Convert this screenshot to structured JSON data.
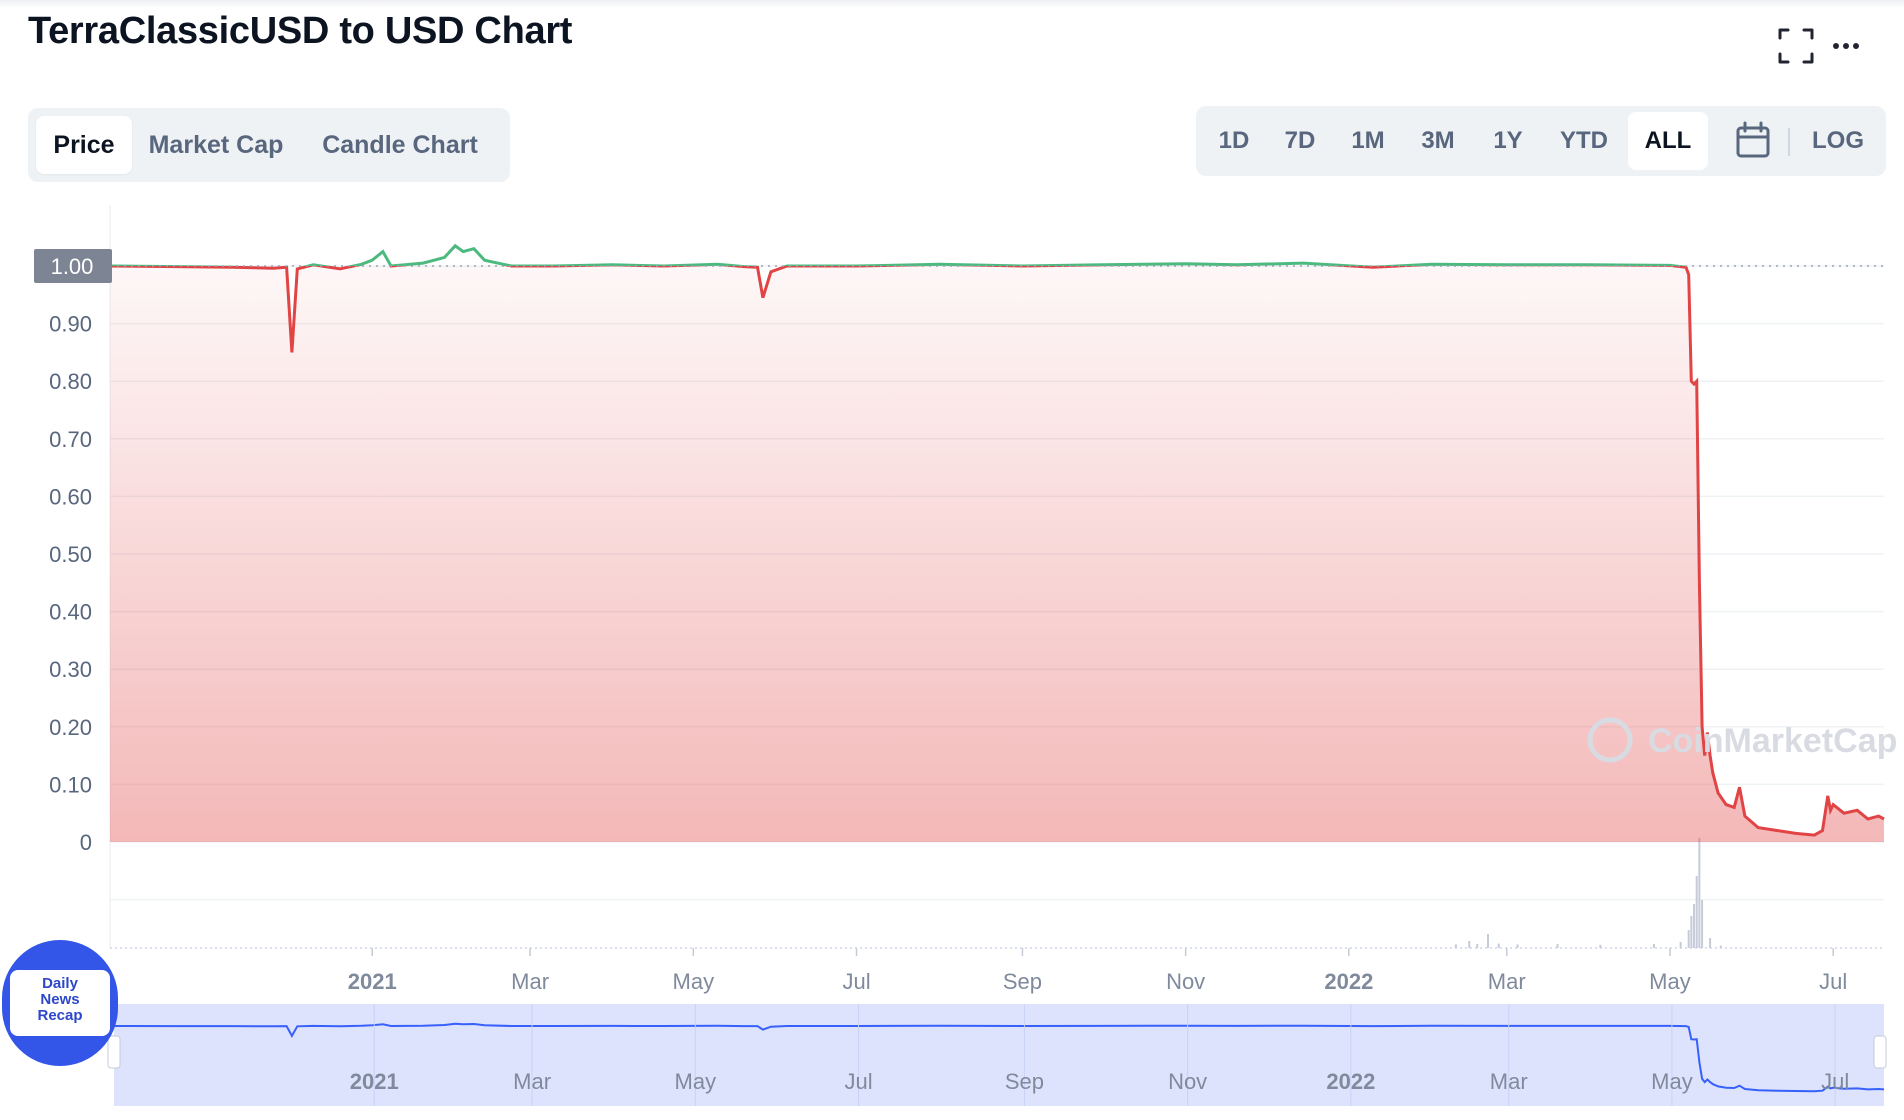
{
  "header": {
    "title": "TerraClassicUSD to USD Chart",
    "fullscreen_icon": "fullscreen-icon",
    "more_icon": "more-horizontal-icon"
  },
  "tabs": [
    {
      "label": "Price",
      "active": true
    },
    {
      "label": "Market Cap",
      "active": false
    },
    {
      "label": "Candle Chart",
      "active": false
    }
  ],
  "ranges": [
    {
      "label": "1D",
      "active": false
    },
    {
      "label": "7D",
      "active": false
    },
    {
      "label": "1M",
      "active": false
    },
    {
      "label": "3M",
      "active": false
    },
    {
      "label": "1Y",
      "active": false
    },
    {
      "label": "YTD",
      "active": false
    },
    {
      "label": "ALL",
      "active": true
    }
  ],
  "calendar_icon": "calendar-icon",
  "log_label": "LOG",
  "watermark": "CoinMarketCap",
  "news_badge": {
    "line1": "Daily",
    "line2": "News",
    "line3": "Recap"
  },
  "colors": {
    "up": "#4cba7e",
    "down": "#e14445",
    "navigator": "#3861fb",
    "accent": "#3456e8"
  },
  "chart_data": {
    "type": "line",
    "y_ticks": [
      "1.00",
      "0.90",
      "0.80",
      "0.70",
      "0.60",
      "0.50",
      "0.40",
      "0.30",
      "0.20",
      "0.10",
      "0"
    ],
    "ylim": [
      0,
      1.05
    ],
    "current_price_label": "1.00",
    "baseline": 1.0,
    "x_ticks": [
      {
        "label": "2021",
        "date": "2021-01-01",
        "year": true
      },
      {
        "label": "Mar",
        "date": "2021-03-01",
        "year": false
      },
      {
        "label": "May",
        "date": "2021-05-01",
        "year": false
      },
      {
        "label": "Jul",
        "date": "2021-07-01",
        "year": false
      },
      {
        "label": "Sep",
        "date": "2021-09-01",
        "year": false
      },
      {
        "label": "Nov",
        "date": "2021-11-01",
        "year": false
      },
      {
        "label": "2022",
        "date": "2022-01-01",
        "year": true
      },
      {
        "label": "Mar",
        "date": "2022-03-01",
        "year": false
      },
      {
        "label": "May",
        "date": "2022-05-01",
        "year": false
      },
      {
        "label": "Jul",
        "date": "2022-07-01",
        "year": false
      }
    ],
    "series": [
      {
        "points": [
          [
            "2020-09-25",
            1.0
          ],
          [
            "2020-10-20",
            0.999
          ],
          [
            "2020-11-10",
            0.998
          ],
          [
            "2020-11-25",
            0.996
          ],
          [
            "2020-11-30",
            0.998
          ],
          [
            "2020-12-02",
            0.85
          ],
          [
            "2020-12-04",
            0.995
          ],
          [
            "2020-12-10",
            1.002
          ],
          [
            "2020-12-20",
            0.995
          ],
          [
            "2020-12-28",
            1.003
          ],
          [
            "2021-01-01",
            1.01
          ],
          [
            "2021-01-05",
            1.025
          ],
          [
            "2021-01-08",
            1.0
          ],
          [
            "2021-01-20",
            1.005
          ],
          [
            "2021-01-28",
            1.015
          ],
          [
            "2021-02-01",
            1.035
          ],
          [
            "2021-02-04",
            1.025
          ],
          [
            "2021-02-08",
            1.03
          ],
          [
            "2021-02-12",
            1.01
          ],
          [
            "2021-02-22",
            1.0
          ],
          [
            "2021-03-10",
            1.0
          ],
          [
            "2021-04-01",
            1.002
          ],
          [
            "2021-04-20",
            1.0
          ],
          [
            "2021-05-10",
            1.003
          ],
          [
            "2021-05-20",
            0.999
          ],
          [
            "2021-05-25",
            0.998
          ],
          [
            "2021-05-27",
            0.945
          ],
          [
            "2021-05-30",
            0.99
          ],
          [
            "2021-06-05",
            1.0
          ],
          [
            "2021-07-01",
            1.0
          ],
          [
            "2021-08-01",
            1.003
          ],
          [
            "2021-09-01",
            1.0
          ],
          [
            "2021-10-01",
            1.002
          ],
          [
            "2021-11-01",
            1.004
          ],
          [
            "2021-11-20",
            1.002
          ],
          [
            "2021-12-15",
            1.005
          ],
          [
            "2022-01-10",
            0.998
          ],
          [
            "2022-02-01",
            1.003
          ],
          [
            "2022-03-01",
            1.002
          ],
          [
            "2022-04-01",
            1.002
          ],
          [
            "2022-05-01",
            1.001
          ],
          [
            "2022-05-07",
            0.998
          ],
          [
            "2022-05-08",
            0.985
          ],
          [
            "2022-05-09",
            0.8
          ],
          [
            "2022-05-10",
            0.795
          ],
          [
            "2022-05-11",
            0.8
          ],
          [
            "2022-05-12",
            0.45
          ],
          [
            "2022-05-13",
            0.2
          ],
          [
            "2022-05-14",
            0.15
          ],
          [
            "2022-05-15",
            0.19
          ],
          [
            "2022-05-16",
            0.15
          ],
          [
            "2022-05-17",
            0.12
          ],
          [
            "2022-05-19",
            0.085
          ],
          [
            "2022-05-22",
            0.065
          ],
          [
            "2022-05-25",
            0.06
          ],
          [
            "2022-05-27",
            0.095
          ],
          [
            "2022-05-29",
            0.045
          ],
          [
            "2022-06-03",
            0.025
          ],
          [
            "2022-06-10",
            0.02
          ],
          [
            "2022-06-17",
            0.015
          ],
          [
            "2022-06-24",
            0.012
          ],
          [
            "2022-06-27",
            0.02
          ],
          [
            "2022-06-29",
            0.08
          ],
          [
            "2022-06-30",
            0.055
          ],
          [
            "2022-07-01",
            0.065
          ],
          [
            "2022-07-05",
            0.05
          ],
          [
            "2022-07-10",
            0.055
          ],
          [
            "2022-07-14",
            0.04
          ],
          [
            "2022-07-18",
            0.045
          ],
          [
            "2022-07-20",
            0.04
          ]
        ]
      }
    ],
    "volume": [
      [
        "2022-02-10",
        0.18
      ],
      [
        "2022-02-15",
        0.35
      ],
      [
        "2022-02-18",
        0.2
      ],
      [
        "2022-02-22",
        0.7
      ],
      [
        "2022-02-26",
        0.22
      ],
      [
        "2022-03-05",
        0.18
      ],
      [
        "2022-03-20",
        0.2
      ],
      [
        "2022-04-05",
        0.16
      ],
      [
        "2022-04-25",
        0.2
      ],
      [
        "2022-05-05",
        0.3
      ],
      [
        "2022-05-08",
        0.9
      ],
      [
        "2022-05-09",
        1.6
      ],
      [
        "2022-05-10",
        2.2
      ],
      [
        "2022-05-11",
        3.6
      ],
      [
        "2022-05-12",
        5.5
      ],
      [
        "2022-05-13",
        2.4
      ],
      [
        "2022-05-16",
        0.5
      ],
      [
        "2022-05-20",
        0.12
      ]
    ]
  }
}
